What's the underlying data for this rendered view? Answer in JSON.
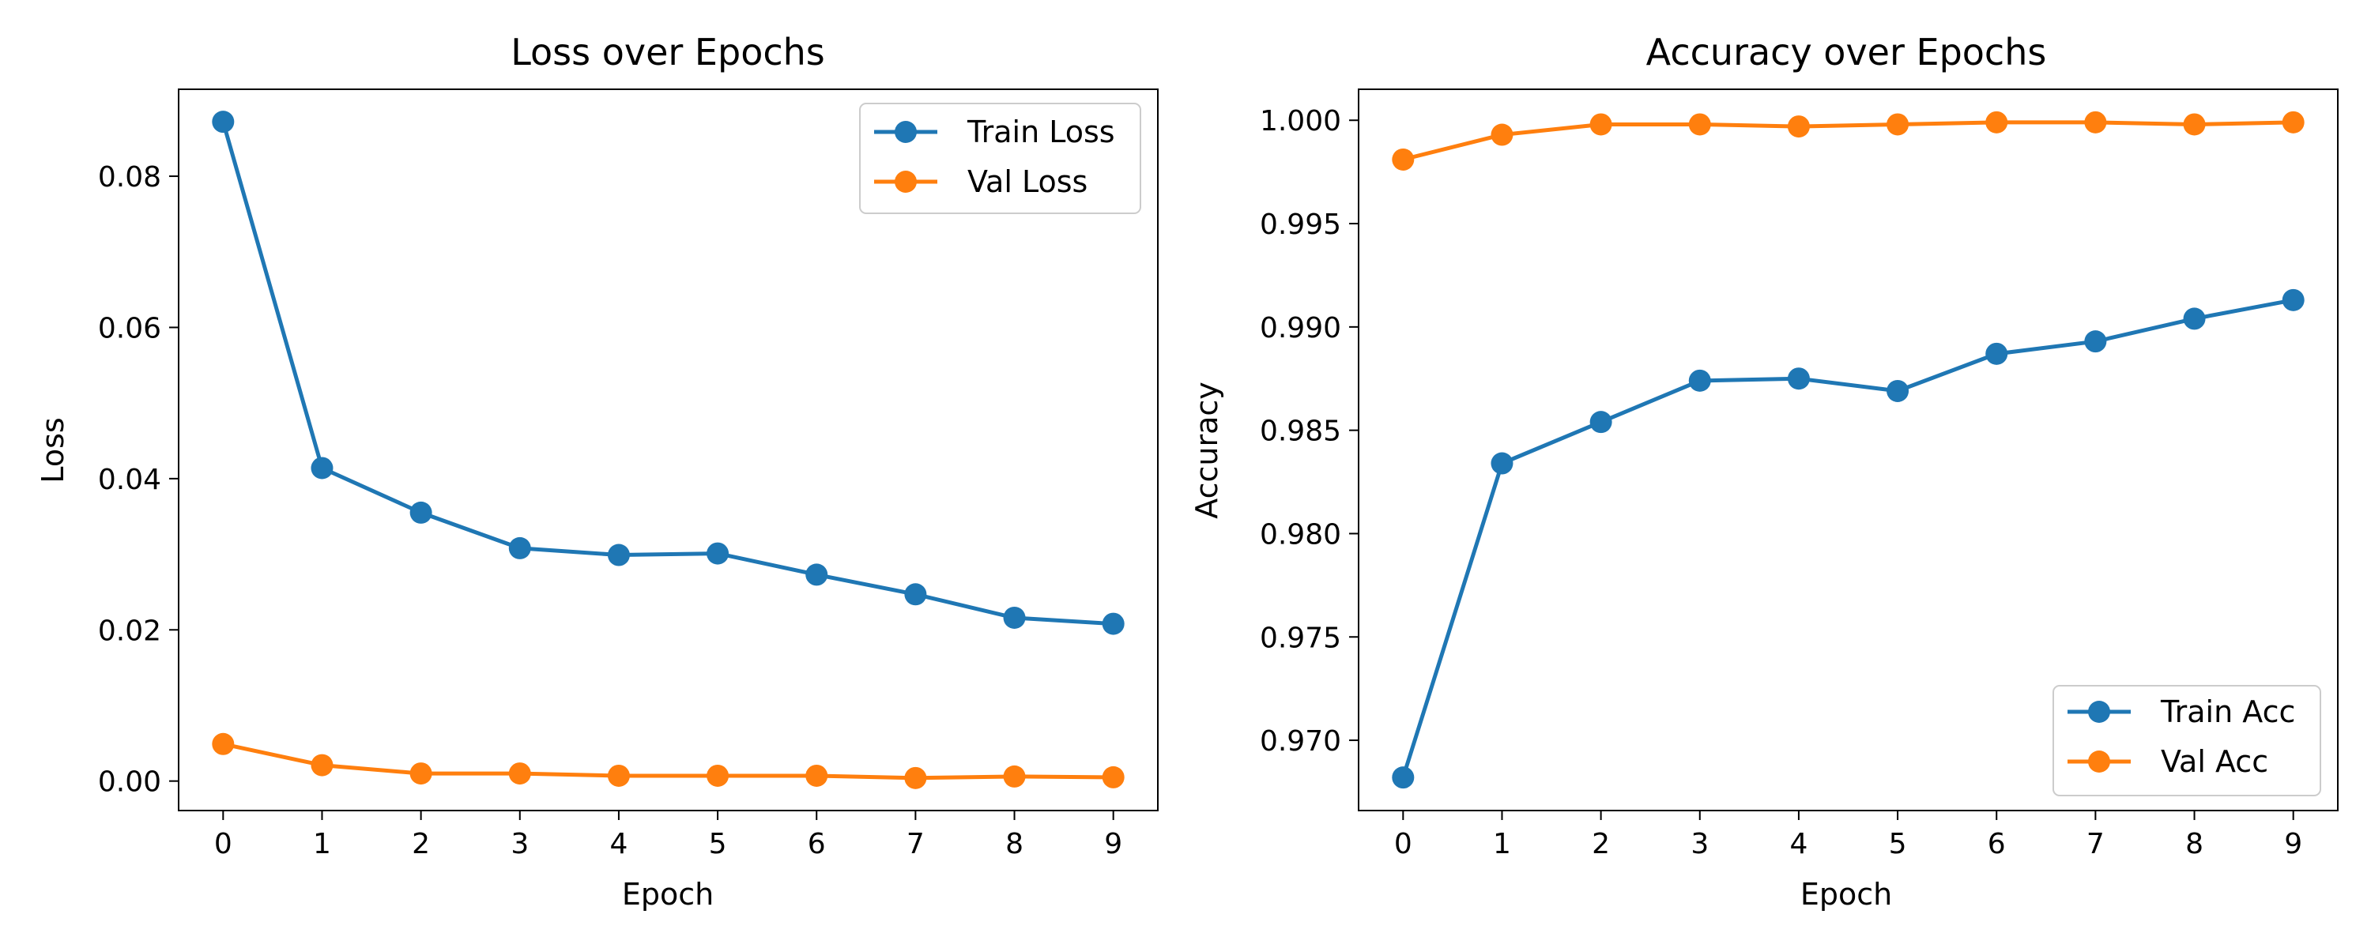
{
  "chart_data": [
    {
      "type": "line",
      "title": "Loss over Epochs",
      "xlabel": "Epoch",
      "ylabel": "Loss",
      "x": [
        0,
        1,
        2,
        3,
        4,
        5,
        6,
        7,
        8,
        9
      ],
      "xlim": [
        -0.45,
        9.45
      ],
      "ylim": [
        -0.0039,
        0.0915
      ],
      "xticks": [
        "0",
        "1",
        "2",
        "3",
        "4",
        "5",
        "6",
        "7",
        "8",
        "9"
      ],
      "yticks": [
        "0.00",
        "0.02",
        "0.04",
        "0.06",
        "0.08"
      ],
      "grid": false,
      "legend_position": "upper right",
      "series": [
        {
          "name": "Train Loss",
          "color": "#1f77b4",
          "values": [
            0.0872,
            0.0414,
            0.0355,
            0.0308,
            0.0299,
            0.0301,
            0.0273,
            0.0247,
            0.0216,
            0.0208
          ]
        },
        {
          "name": "Val Loss",
          "color": "#ff7f0e",
          "values": [
            0.0049,
            0.0021,
            0.001,
            0.001,
            0.0007,
            0.0007,
            0.0007,
            0.0004,
            0.0006,
            0.0005
          ]
        }
      ]
    },
    {
      "type": "line",
      "title": "Accuracy over Epochs",
      "xlabel": "Epoch",
      "ylabel": "Accuracy",
      "x": [
        0,
        1,
        2,
        3,
        4,
        5,
        6,
        7,
        8,
        9
      ],
      "xlim": [
        -0.45,
        9.45
      ],
      "ylim": [
        0.9666,
        1.0015
      ],
      "xticks": [
        "0",
        "1",
        "2",
        "3",
        "4",
        "5",
        "6",
        "7",
        "8",
        "9"
      ],
      "yticks": [
        "0.970",
        "0.975",
        "0.980",
        "0.985",
        "0.990",
        "0.995",
        "1.000"
      ],
      "grid": false,
      "legend_position": "lower right",
      "series": [
        {
          "name": "Train Acc",
          "color": "#1f77b4",
          "values": [
            0.9682,
            0.9834,
            0.9854,
            0.9874,
            0.9875,
            0.9869,
            0.9887,
            0.9893,
            0.9904,
            0.9913
          ]
        },
        {
          "name": "Val Acc",
          "color": "#ff7f0e",
          "values": [
            0.9981,
            0.9993,
            0.9998,
            0.9998,
            0.9997,
            0.9998,
            0.9999,
            0.9999,
            0.9998,
            0.9999
          ]
        }
      ]
    }
  ]
}
